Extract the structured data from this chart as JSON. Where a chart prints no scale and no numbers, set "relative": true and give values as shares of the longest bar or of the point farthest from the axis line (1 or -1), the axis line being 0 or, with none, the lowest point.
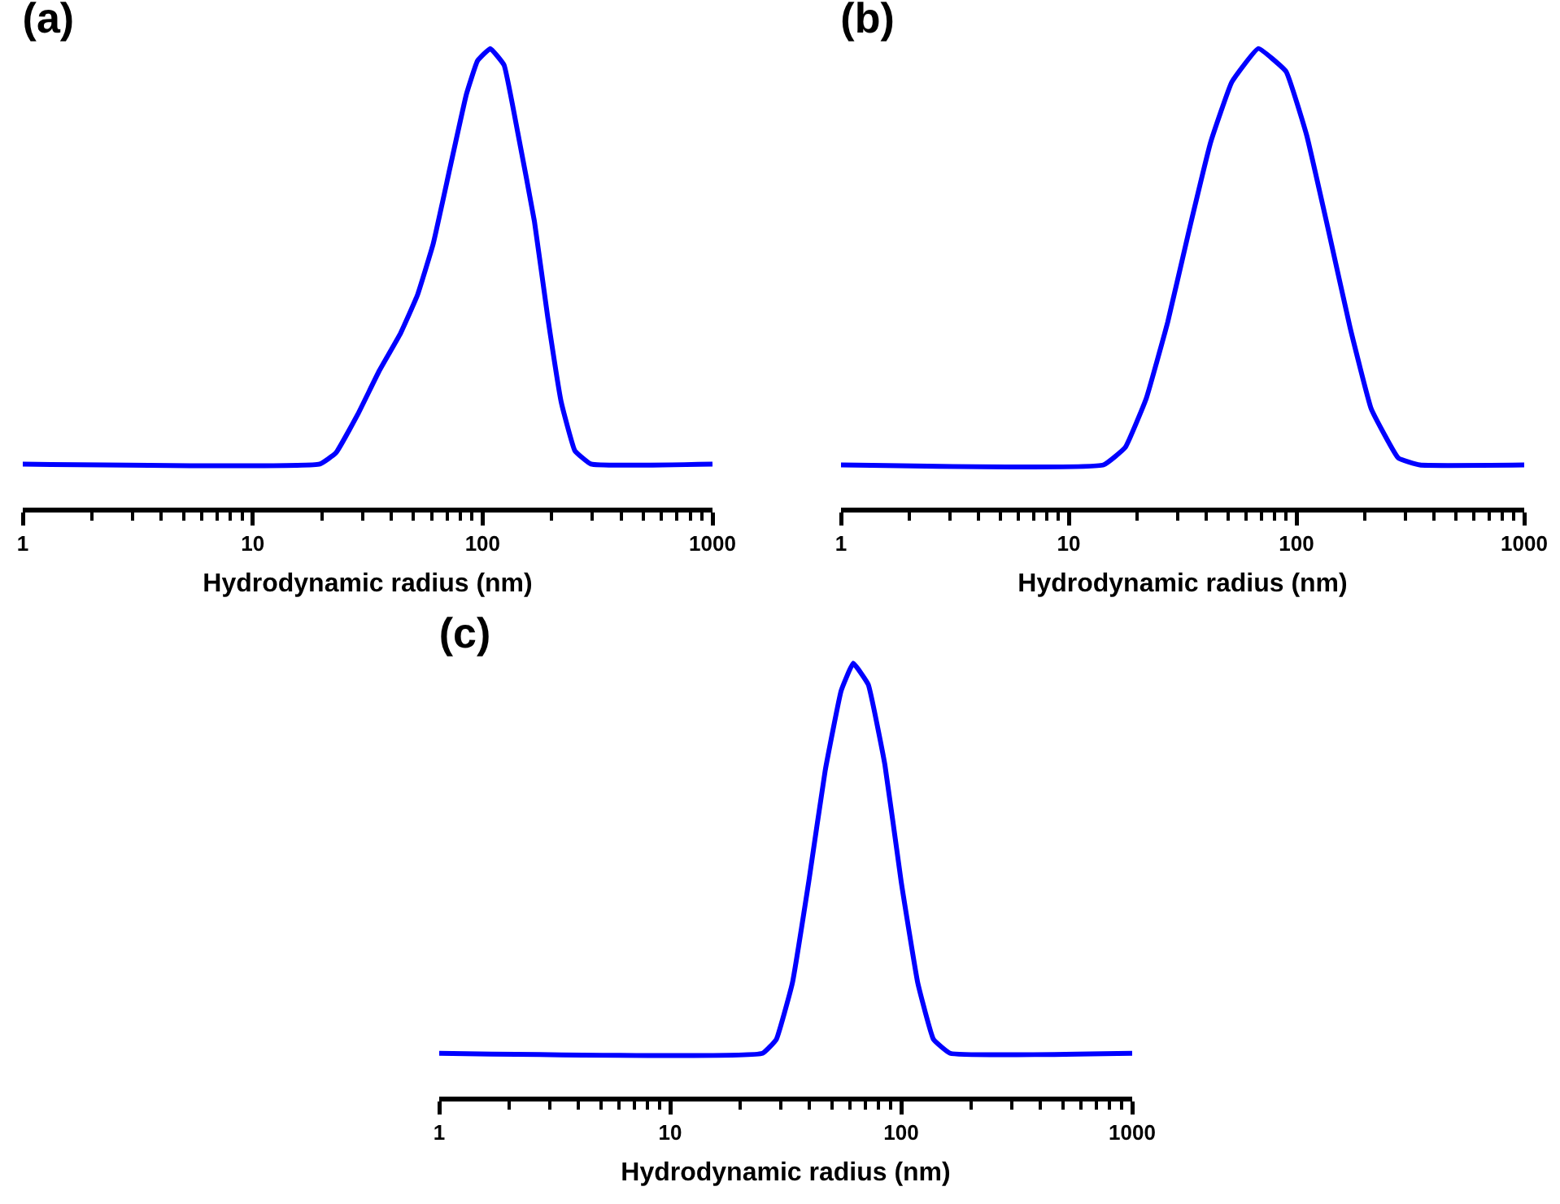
{
  "chart_data": [
    {
      "type": "line",
      "title": "(a)",
      "xlabel": "Hydrodynamic radius (nm)",
      "relative": true,
      "log": "x",
      "xlim": [
        1,
        1000
      ],
      "xticks": [
        1,
        10,
        100,
        1000
      ],
      "marker": "none",
      "line_style": "solid",
      "tick_labels": "x",
      "series": [
        {
          "color": "#0000ff",
          "x": [
            1,
            19.6,
            23,
            28.7,
            35.6,
            44,
            52,
            61,
            72,
            85,
            95,
            108,
            124,
            142,
            168,
            192,
            220,
            252,
            296,
            1000
          ],
          "values": [
            0.095,
            0.095,
            0.119,
            0.204,
            0.299,
            0.38,
            0.462,
            0.575,
            0.738,
            0.9,
            0.973,
            1,
            0.964,
            0.819,
            0.624,
            0.415,
            0.229,
            0.124,
            0.095,
            0.095
          ]
        }
      ]
    },
    {
      "type": "line",
      "title": "(b)",
      "xlabel": "Hydrodynamic radius (nm)",
      "relative": true,
      "log": "x",
      "xlim": [
        1,
        1000
      ],
      "xticks": [
        1,
        10,
        100,
        1000
      ],
      "marker": "none",
      "line_style": "solid",
      "tick_labels": "x",
      "series": [
        {
          "color": "#0000ff",
          "x": [
            1,
            14.2,
            17.7,
            21.9,
            27.2,
            33.8,
            42,
            52,
            68,
            90,
            111,
            138,
            172,
            213,
            280,
            348,
            1000
          ],
          "values": [
            0.093,
            0.093,
            0.131,
            0.238,
            0.404,
            0.605,
            0.796,
            0.927,
            1,
            0.95,
            0.81,
            0.605,
            0.392,
            0.215,
            0.108,
            0.093,
            0.093
          ]
        }
      ]
    },
    {
      "type": "line",
      "title": "(c)",
      "xlabel": "Hydrodynamic radius (nm)",
      "relative": true,
      "log": "x",
      "xlim": [
        1,
        1000
      ],
      "xticks": [
        1,
        10,
        100,
        1000
      ],
      "marker": "none",
      "line_style": "solid",
      "tick_labels": "x",
      "series": [
        {
          "color": "#0000ff",
          "x": [
            1,
            25.1,
            28.8,
            33.8,
            39.8,
            46.9,
            55,
            62,
            72,
            85,
            100,
            118,
            138,
            163,
            1000
          ],
          "values": [
            0.1,
            0.1,
            0.132,
            0.262,
            0.496,
            0.753,
            0.937,
            1,
            0.951,
            0.766,
            0.496,
            0.262,
            0.132,
            0.1,
            0.1
          ]
        }
      ]
    }
  ]
}
